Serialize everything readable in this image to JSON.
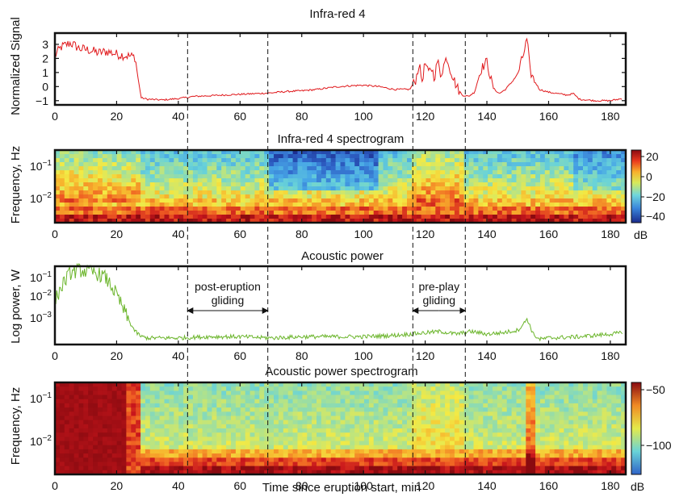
{
  "chart_data": [
    {
      "id": "ir4",
      "type": "line",
      "title": "Infra-red 4",
      "ylabel": "Normalized Signal",
      "xlim": [
        0,
        185
      ],
      "ylim": [
        -1.3,
        3.8
      ],
      "xticks": [
        0,
        20,
        40,
        60,
        80,
        100,
        120,
        140,
        160,
        180
      ],
      "yticks": [
        -1,
        0,
        1,
        2,
        3
      ],
      "color": "#e0191c",
      "series": [
        {
          "x": [
            0,
            2,
            5,
            8,
            11,
            14,
            17,
            20,
            23,
            26,
            27,
            28,
            30,
            35,
            40,
            45,
            50,
            55,
            60,
            65,
            70,
            75,
            80,
            85,
            90,
            95,
            100,
            105,
            110,
            115,
            117,
            118,
            119,
            120,
            121,
            122,
            123,
            124,
            125,
            126,
            127,
            128,
            129,
            130,
            131,
            132,
            134,
            136,
            138,
            140,
            141,
            142,
            144,
            146,
            148,
            150,
            152,
            153,
            154,
            155,
            157,
            160,
            163,
            166,
            168,
            170,
            175,
            180,
            184
          ],
          "y": [
            2.2,
            2.8,
            3.1,
            2.7,
            2.6,
            2.4,
            2.5,
            2.3,
            2.2,
            2.1,
            0.5,
            -0.8,
            -0.9,
            -0.95,
            -0.85,
            -0.7,
            -0.65,
            -0.6,
            -0.55,
            -0.5,
            -0.45,
            -0.35,
            -0.3,
            -0.2,
            -0.05,
            0.05,
            0.1,
            0.0,
            -0.2,
            -0.2,
            0.5,
            1.6,
            0.4,
            1.7,
            0.9,
            1.4,
            0.6,
            1.9,
            0.8,
            1.5,
            2.1,
            1.3,
            0.7,
            0.1,
            -0.3,
            -0.6,
            -0.7,
            -0.4,
            1.2,
            1.8,
            0.8,
            -0.1,
            -0.5,
            -0.2,
            0.3,
            0.9,
            2.4,
            3.4,
            1.1,
            0.6,
            -0.2,
            -0.4,
            -0.5,
            -0.6,
            -0.5,
            -0.9,
            -1.0,
            -1.0,
            -0.85
          ]
        }
      ]
    },
    {
      "id": "ir4spec",
      "type": "heatmap",
      "title": "Infra-red 4 spectrogram",
      "ylabel": "Frequency, Hz",
      "xlim": [
        0,
        185
      ],
      "xticks": [
        0,
        20,
        40,
        60,
        80,
        100,
        120,
        140,
        160,
        180
      ],
      "ytick_labels": [
        "10",
        "10"
      ],
      "ytick_exponents": [
        "−1",
        "−2"
      ],
      "colorbar": {
        "label": "dB",
        "ticks": [
          "20",
          "0",
          "−20",
          "−40"
        ],
        "range": [
          -50,
          28
        ]
      }
    },
    {
      "id": "acoustic",
      "type": "line",
      "title": "Acoustic power",
      "ylabel": "Log power, W",
      "xlim": [
        0,
        185
      ],
      "ylog_range": [
        -3.6,
        -0.6
      ],
      "xticks": [
        0,
        20,
        40,
        60,
        80,
        100,
        120,
        140,
        160,
        180
      ],
      "ytick_labels": [
        "10",
        "10",
        "10"
      ],
      "ytick_exponents": [
        "−1",
        "−2",
        "−3"
      ],
      "color": "#6bb52b",
      "series": [
        {
          "x": [
            0,
            3,
            5,
            8,
            10,
            13,
            16,
            18,
            20,
            22,
            24,
            26,
            28,
            30,
            40,
            50,
            60,
            70,
            80,
            90,
            100,
            110,
            115,
            120,
            125,
            130,
            135,
            140,
            145,
            150,
            152,
            153,
            154,
            155,
            157,
            160,
            170,
            180,
            184
          ],
          "y_log10": [
            -1.9,
            -1.2,
            -0.85,
            -0.75,
            -0.8,
            -0.85,
            -1.0,
            -1.3,
            -1.7,
            -2.2,
            -2.7,
            -3.1,
            -3.3,
            -3.35,
            -3.35,
            -3.3,
            -3.3,
            -3.35,
            -3.3,
            -3.3,
            -3.3,
            -3.25,
            -3.2,
            -3.15,
            -3.1,
            -3.2,
            -3.1,
            -3.2,
            -3.15,
            -3.05,
            -2.8,
            -2.6,
            -2.9,
            -3.2,
            -3.4,
            -3.35,
            -3.3,
            -3.2,
            -3.15
          ]
        }
      ],
      "annotations": [
        {
          "lines": [
            "post-eruption",
            "gliding"
          ],
          "x0": 43,
          "x1": 69
        },
        {
          "lines": [
            "pre-play",
            "gliding"
          ],
          "x0": 116,
          "x1": 133
        }
      ]
    },
    {
      "id": "acspec",
      "type": "heatmap",
      "title": "Acoustic power spectrogram",
      "ylabel": "Frequency, Hz",
      "xlabel": "Time since eruption start, min",
      "xlim": [
        0,
        185
      ],
      "xticks": [
        0,
        20,
        40,
        60,
        80,
        100,
        120,
        140,
        160,
        180
      ],
      "ytick_labels": [
        "10",
        "10"
      ],
      "ytick_exponents": [
        "−1",
        "−2"
      ],
      "colorbar": {
        "label": "dB",
        "ticks": [
          "−50",
          "−100"
        ],
        "range": [
          -140,
          -40
        ]
      }
    }
  ],
  "vlines_minutes": [
    43,
    69,
    116,
    133
  ],
  "palette": {
    "jet": [
      "#1a2a8c",
      "#2f63c8",
      "#47a6e6",
      "#69d3d8",
      "#b2e38a",
      "#f3ea44",
      "#f7b02c",
      "#ee5a22",
      "#c8161c",
      "#8a0a10"
    ]
  }
}
